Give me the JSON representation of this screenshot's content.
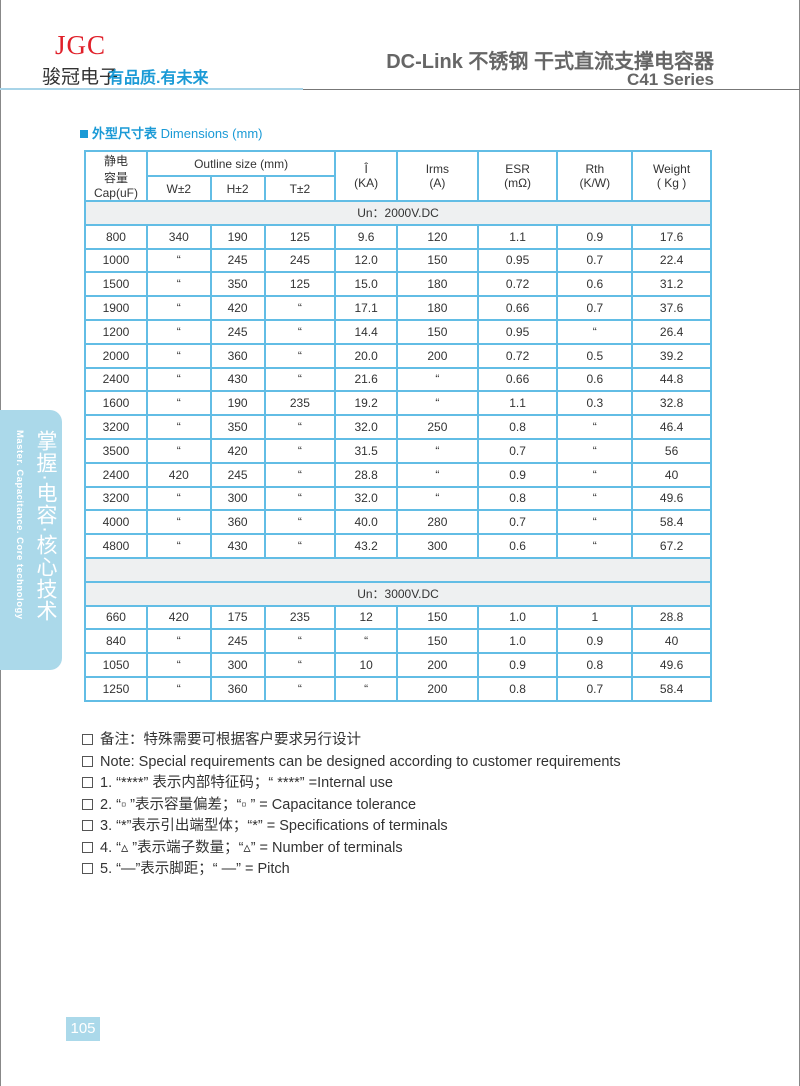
{
  "header": {
    "logo": "JGC",
    "company": "骏冠电子",
    "slogan": "有品质.有未来",
    "title": "DC-Link 不锈钢  干式直流支撑电容器",
    "series": "C41 Series"
  },
  "section": {
    "title_cn": "外型尺寸表",
    "title_en": "Dimensions (mm)"
  },
  "sidetab": {
    "cn": "掌握·电容·核心技术",
    "en": "Master. Capacitance. Core technology"
  },
  "table": {
    "headers": {
      "cap": [
        "静电",
        "容量",
        "Cap(uF)"
      ],
      "outline": "Outline size (mm)",
      "w": "W±2",
      "h": "H±2",
      "t": "T±2",
      "i": [
        "Î",
        "(KA)"
      ],
      "irms": [
        "Irms",
        "(A)"
      ],
      "esr": [
        "ESR",
        "(mΩ)"
      ],
      "rth": [
        "Rth",
        "(K/W)"
      ],
      "weight": [
        "Weight",
        "( Kg )"
      ]
    },
    "groups": [
      {
        "label": "Un：2000V.DC",
        "rows": [
          [
            "800",
            "340",
            "190",
            "125",
            "9.6",
            "120",
            "1.1",
            "0.9",
            "17.6"
          ],
          [
            "1000",
            "“",
            "245",
            "245",
            "12.0",
            "150",
            "0.95",
            "0.7",
            "22.4"
          ],
          [
            "1500",
            "“",
            "350",
            "125",
            "15.0",
            "180",
            "0.72",
            "0.6",
            "31.2"
          ],
          [
            "1900",
            "“",
            "420",
            "“",
            "17.1",
            "180",
            "0.66",
            "0.7",
            "37.6"
          ],
          [
            "1200",
            "“",
            "245",
            "“",
            "14.4",
            "150",
            "0.95",
            "“",
            "26.4"
          ],
          [
            "2000",
            "“",
            "360",
            "“",
            "20.0",
            "200",
            "0.72",
            "0.5",
            "39.2"
          ],
          [
            "2400",
            "“",
            "430",
            "“",
            "21.6",
            "“",
            "0.66",
            "0.6",
            "44.8"
          ],
          [
            "1600",
            "“",
            "190",
            "235",
            "19.2",
            "“",
            "1.1",
            "0.3",
            "32.8"
          ],
          [
            "3200",
            "“",
            "350",
            "“",
            "32.0",
            "250",
            "0.8",
            "“",
            "46.4"
          ],
          [
            "3500",
            "“",
            "420",
            "“",
            "31.5",
            "“",
            "0.7",
            "“",
            "56"
          ],
          [
            "2400",
            "420",
            "245",
            "“",
            "28.8",
            "“",
            "0.9",
            "“",
            "40"
          ],
          [
            "3200",
            "“",
            "300",
            "“",
            "32.0",
            "“",
            "0.8",
            "“",
            "49.6"
          ],
          [
            "4000",
            "“",
            "360",
            "“",
            "40.0",
            "280",
            "0.7",
            "“",
            "58.4"
          ],
          [
            "4800",
            "“",
            "430",
            "“",
            "43.2",
            "300",
            "0.6",
            "“",
            "67.2"
          ]
        ]
      },
      {
        "label": "Un：3000V.DC",
        "rows": [
          [
            "660",
            "420",
            "175",
            "235",
            "12",
            "150",
            "1.0",
            "1",
            "28.8"
          ],
          [
            "840",
            "“",
            "245",
            "“",
            "“",
            "150",
            "1.0",
            "0.9",
            "40"
          ],
          [
            "1050",
            "“",
            "300",
            "“",
            "10",
            "200",
            "0.9",
            "0.8",
            "49.6"
          ],
          [
            "1250",
            "“",
            "360",
            "“",
            "“",
            "200",
            "0.8",
            "0.7",
            "58.4"
          ]
        ]
      }
    ]
  },
  "notes": [
    "备注：特殊需要可根据客户要求另行设计",
    "Note: Special requirements can be designed according to customer requirements",
    "1. “****”  表示内部特征码；“ ****”  =Internal use",
    "2. “▫ ”表示容量偏差；“▫ ”  = Capacitance tolerance",
    "3. “*”表示引出端型体；“*”  = Specifications of terminals",
    "4. “▵ ”表示端子数量；“▵”  = Number of terminals",
    "5. “—”表示脚距；“ —”  = Pitch"
  ],
  "page_number": "105"
}
